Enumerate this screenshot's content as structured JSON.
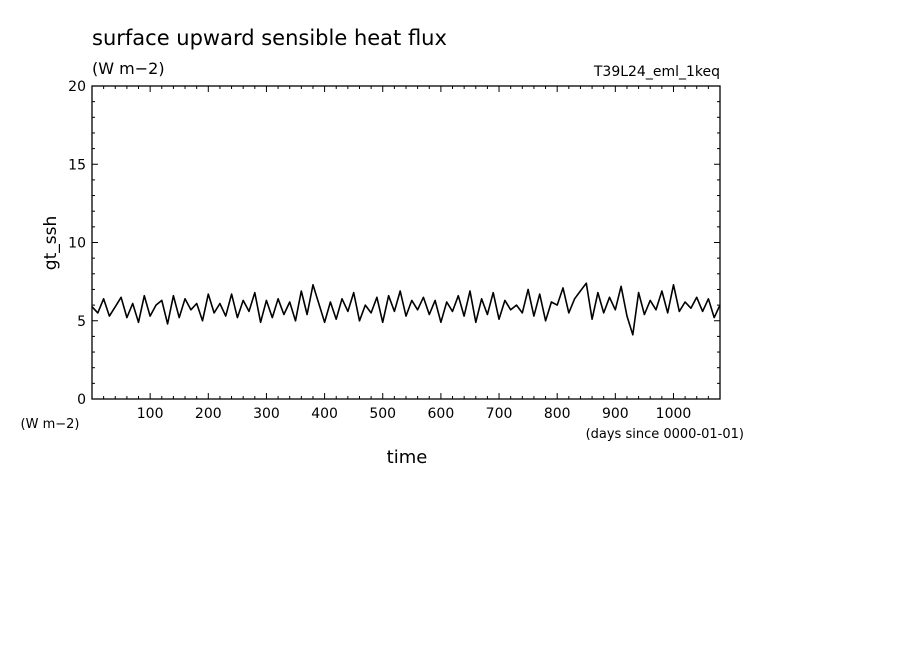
{
  "chart_data": {
    "type": "line",
    "title": "surface upward sensible heat flux",
    "units": "(W m−2)",
    "run_label": "T39L24_eml_1keq",
    "ylabel": "gt_ssh",
    "yunit_label": "(W m−2)",
    "xlabel": "time",
    "xunit_label": "(days since 0000-01-01)",
    "xlim": [
      0,
      1080
    ],
    "ylim": [
      0,
      20
    ],
    "xticks": [
      100,
      200,
      300,
      400,
      500,
      600,
      700,
      800,
      900,
      1000
    ],
    "yticks": [
      0,
      5,
      10,
      15,
      20
    ],
    "grid": false,
    "line_color": "#000000",
    "series": [
      {
        "x": [
          0,
          10,
          20,
          30,
          40,
          50,
          60,
          70,
          80,
          90,
          100,
          110,
          120,
          130,
          140,
          150,
          160,
          170,
          180,
          190,
          200,
          210,
          220,
          230,
          240,
          250,
          260,
          270,
          280,
          290,
          300,
          310,
          320,
          330,
          340,
          350,
          360,
          370,
          380,
          390,
          400,
          410,
          420,
          430,
          440,
          450,
          460,
          470,
          480,
          490,
          500,
          510,
          520,
          530,
          540,
          550,
          560,
          570,
          580,
          590,
          600,
          610,
          620,
          630,
          640,
          650,
          660,
          670,
          680,
          690,
          700,
          710,
          720,
          730,
          740,
          750,
          760,
          770,
          780,
          790,
          800,
          810,
          820,
          830,
          840,
          850,
          860,
          870,
          880,
          890,
          900,
          910,
          920,
          930,
          940,
          950,
          960,
          970,
          980,
          990,
          1000,
          1010,
          1020,
          1030,
          1040,
          1050,
          1060,
          1070,
          1080
        ],
        "y": [
          5.9,
          5.5,
          6.4,
          5.3,
          5.9,
          6.5,
          5.2,
          6.1,
          4.9,
          6.6,
          5.3,
          6.0,
          6.3,
          4.8,
          6.6,
          5.2,
          6.4,
          5.7,
          6.1,
          5.0,
          6.7,
          5.5,
          6.1,
          5.3,
          6.7,
          5.2,
          6.3,
          5.6,
          6.8,
          4.9,
          6.3,
          5.2,
          6.4,
          5.4,
          6.2,
          5.0,
          6.9,
          5.4,
          7.3,
          6.1,
          4.9,
          6.2,
          5.1,
          6.4,
          5.6,
          6.8,
          5.0,
          6.0,
          5.5,
          6.5,
          4.9,
          6.6,
          5.6,
          6.9,
          5.3,
          6.3,
          5.7,
          6.5,
          5.4,
          6.3,
          4.9,
          6.2,
          5.6,
          6.6,
          5.3,
          6.9,
          4.9,
          6.4,
          5.4,
          6.8,
          5.1,
          6.3,
          5.7,
          6.0,
          5.5,
          7.0,
          5.3,
          6.7,
          5.0,
          6.2,
          6.0,
          7.1,
          5.5,
          6.4,
          6.9,
          7.4,
          5.1,
          6.8,
          5.5,
          6.5,
          5.7,
          7.2,
          5.3,
          4.1,
          6.8,
          5.4,
          6.3,
          5.7,
          6.9,
          5.5,
          7.3,
          5.6,
          6.2,
          5.8,
          6.5,
          5.6,
          6.4,
          5.2,
          6.0
        ]
      }
    ]
  }
}
